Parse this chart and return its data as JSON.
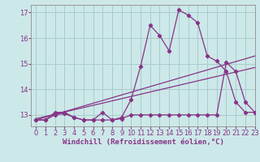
{
  "background_color": "#cce8e8",
  "grid_color": "#aacccc",
  "line_color": "#883388",
  "xlim": [
    -0.5,
    23
  ],
  "ylim": [
    12.55,
    17.3
  ],
  "yticks": [
    13,
    14,
    15,
    16,
    17
  ],
  "xticks": [
    0,
    1,
    2,
    3,
    4,
    5,
    6,
    7,
    8,
    9,
    10,
    11,
    12,
    13,
    14,
    15,
    16,
    17,
    18,
    19,
    20,
    21,
    22,
    23
  ],
  "xlabel": "Windchill (Refroidissement éolien,°C)",
  "xlabel_fontsize": 6.5,
  "tick_fontsize": 6,
  "curve1_x": [
    0,
    1,
    2,
    3,
    4,
    5,
    6,
    7,
    8,
    9,
    10,
    11,
    12,
    13,
    14,
    15,
    16,
    17,
    18,
    19,
    20,
    21,
    22,
    23
  ],
  "curve1_y": [
    12.8,
    12.8,
    13.1,
    13.1,
    12.9,
    12.8,
    12.8,
    13.1,
    12.8,
    12.9,
    13.6,
    14.9,
    16.5,
    16.1,
    15.5,
    17.1,
    16.9,
    16.6,
    15.3,
    15.1,
    14.7,
    13.5,
    13.1,
    13.1
  ],
  "curve2_x": [
    0,
    1,
    2,
    3,
    4,
    5,
    6,
    7,
    8,
    9,
    10,
    11,
    12,
    13,
    14,
    15,
    16,
    17,
    18,
    19,
    20,
    21,
    22,
    23
  ],
  "curve2_y": [
    12.8,
    12.8,
    13.0,
    13.05,
    12.9,
    12.8,
    12.8,
    12.8,
    12.8,
    12.85,
    13.0,
    13.0,
    13.0,
    13.0,
    13.0,
    13.0,
    13.0,
    13.0,
    13.0,
    13.0,
    15.05,
    14.7,
    13.5,
    13.1
  ],
  "line1_x": [
    0,
    23
  ],
  "line1_y": [
    12.8,
    15.3
  ],
  "line2_x": [
    0,
    23
  ],
  "line2_y": [
    12.85,
    14.85
  ]
}
